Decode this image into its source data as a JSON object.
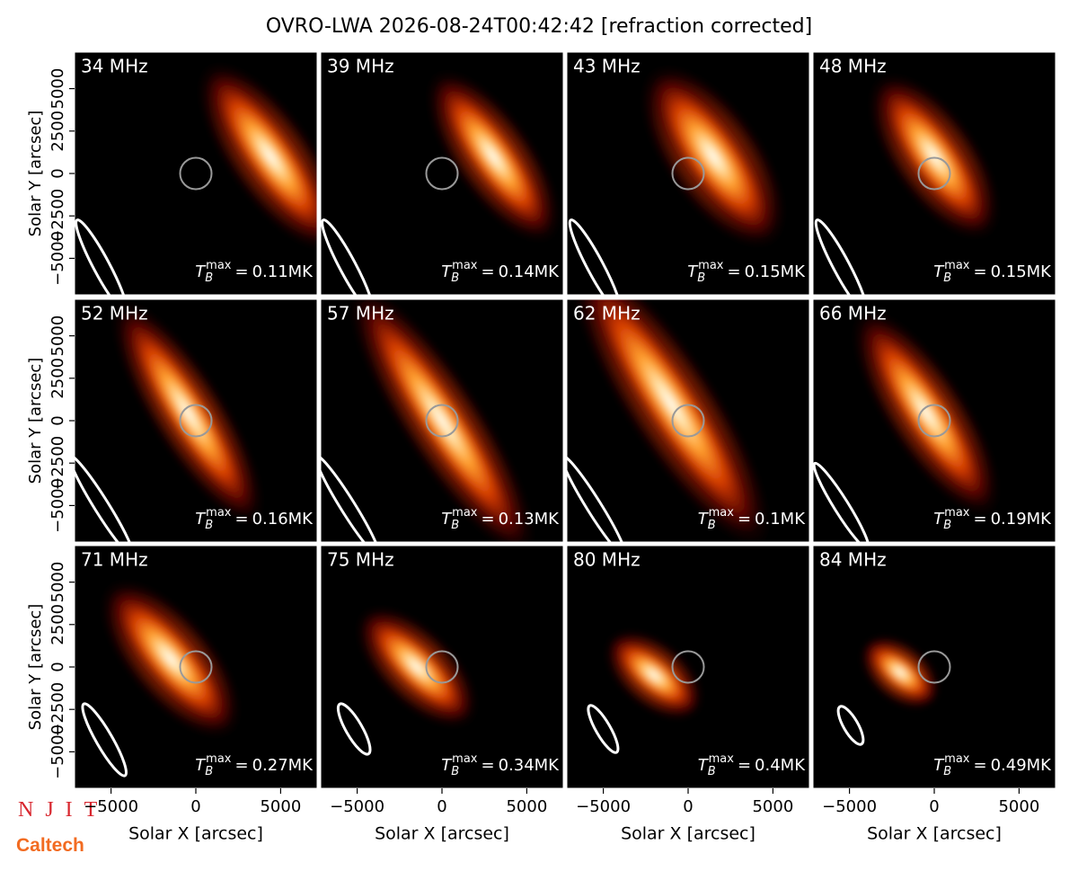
{
  "title": "OVRO-LWA 2026-08-24T00:42:42 [refraction corrected]",
  "axes": {
    "xlabel": "Solar X [arcsec]",
    "ylabel": "Solar Y [arcsec]",
    "xlim": [
      -7150,
      7150
    ],
    "ylim": [
      -7150,
      7150
    ],
    "xticks": [
      {
        "value": -5000,
        "label": "−5000"
      },
      0,
      5000
    ],
    "yticks": [
      {
        "value": -5000,
        "label": "−5000"
      },
      {
        "value": -2500,
        "label": "−2500"
      },
      0,
      2500,
      5000
    ]
  },
  "tb_symbol": "T",
  "tb_sub": "B",
  "tb_sup": "max",
  "tb_eq": "=",
  "panels": [
    {
      "freq": "34 MHz",
      "tb_value": "0.11MK"
    },
    {
      "freq": "39 MHz",
      "tb_value": "0.14MK"
    },
    {
      "freq": "43 MHz",
      "tb_value": "0.15MK"
    },
    {
      "freq": "48 MHz",
      "tb_value": "0.15MK"
    },
    {
      "freq": "52 MHz",
      "tb_value": "0.16MK"
    },
    {
      "freq": "57 MHz",
      "tb_value": "0.13MK"
    },
    {
      "freq": "62 MHz",
      "tb_value": "0.1MK"
    },
    {
      "freq": "66 MHz",
      "tb_value": "0.19MK"
    },
    {
      "freq": "71 MHz",
      "tb_value": "0.27MK"
    },
    {
      "freq": "75 MHz",
      "tb_value": "0.34MK"
    },
    {
      "freq": "80 MHz",
      "tb_value": "0.4MK"
    },
    {
      "freq": "84 MHz",
      "tb_value": "0.49MK"
    }
  ],
  "logos": {
    "njit": "NJIT",
    "caltech": "Caltech"
  }
}
